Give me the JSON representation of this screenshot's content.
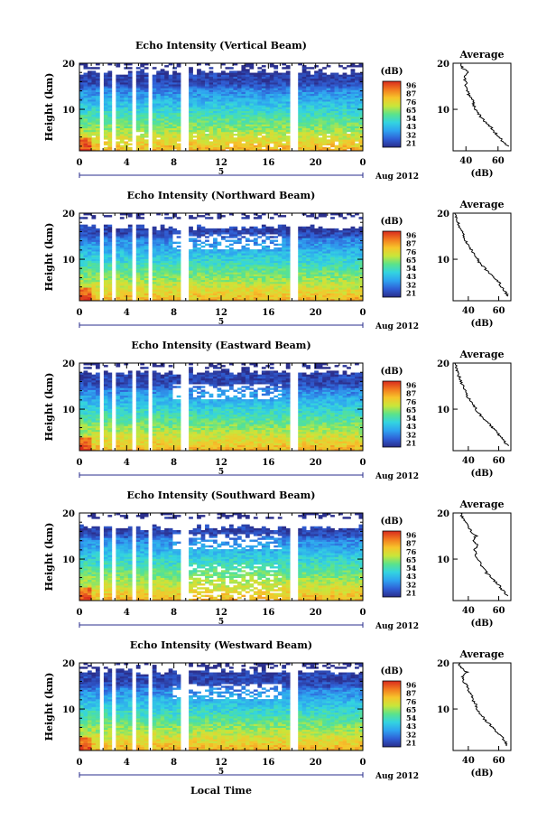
{
  "panels": [
    {
      "title": "Echo Intensity (Vertical Beam)",
      "ylabel": "Height (km)",
      "yticks": [
        "20",
        "10"
      ],
      "xticks": [
        "0",
        "4",
        "8",
        "12",
        "16",
        "20",
        "0"
      ],
      "date_marker": "5",
      "date_label": "Aug 2012"
    },
    {
      "title": "Echo Intensity (Northward Beam)",
      "ylabel": "Height (km)",
      "yticks": [
        "20",
        "10"
      ],
      "xticks": [
        "0",
        "4",
        "8",
        "12",
        "16",
        "20",
        "0"
      ],
      "date_marker": "5",
      "date_label": "Aug 2012"
    },
    {
      "title": "Echo Intensity (Eastward Beam)",
      "ylabel": "Height (km)",
      "yticks": [
        "20",
        "10"
      ],
      "xticks": [
        "0",
        "4",
        "8",
        "12",
        "16",
        "20",
        "0"
      ],
      "date_marker": "5",
      "date_label": "Aug 2012"
    },
    {
      "title": "Echo Intensity (Southward Beam)",
      "ylabel": "Height (km)",
      "yticks": [
        "20",
        "10"
      ],
      "xticks": [
        "0",
        "4",
        "8",
        "12",
        "16",
        "20",
        "0"
      ],
      "date_marker": "5",
      "date_label": "Aug 2012"
    },
    {
      "title": "Echo Intensity (Westward Beam)",
      "ylabel": "Height (km)",
      "yticks": [
        "20",
        "10"
      ],
      "xticks": [
        "0",
        "4",
        "8",
        "12",
        "16",
        "20",
        "0"
      ],
      "date_marker": "5",
      "date_label": "Aug 2012"
    }
  ],
  "xlabel_bottom": "Local Time",
  "colorbar": {
    "unit": "(dB)",
    "ticks": [
      "96",
      "87",
      "76",
      "65",
      "54",
      "43",
      "32",
      "21"
    ]
  },
  "profile": {
    "title": "Average",
    "xlabel": "(dB)"
  },
  "colors": {
    "scale": [
      "#2a2e8c",
      "#2f5fd6",
      "#2ea3f0",
      "#33d4e0",
      "#5be38a",
      "#c9e63a",
      "#f6c52a",
      "#f27a1f",
      "#d92b1e"
    ]
  },
  "chart_data": [
    {
      "type": "heatmap",
      "title": "Echo Intensity (Vertical Beam)",
      "xlabel": "Local Time",
      "ylabel": "Height (km)",
      "xlim": [
        0,
        24
      ],
      "ylim": [
        1,
        20
      ],
      "color_scale_db": [
        21,
        96
      ],
      "date": "5 Aug 2012",
      "average_profile": {
        "type": "line",
        "title": "Average",
        "xlabel": "(dB)",
        "xticks": [
          "40",
          "60"
        ],
        "yticks": [
          "20",
          "10"
        ],
        "xlim": [
          32,
          68
        ],
        "ylim": [
          1,
          20
        ],
        "height_km": [
          2,
          3,
          4,
          5,
          6,
          7,
          8,
          9,
          10,
          11,
          12,
          13,
          14,
          15,
          16,
          17,
          18,
          19,
          20
        ],
        "db": [
          66,
          63,
          61,
          58,
          56,
          53,
          50,
          48,
          46,
          45,
          44,
          42,
          41,
          40,
          40,
          39,
          42,
          38,
          37
        ]
      }
    },
    {
      "type": "heatmap",
      "title": "Echo Intensity (Northward Beam)",
      "xlabel": "Local Time",
      "ylabel": "Height (km)",
      "xlim": [
        0,
        24
      ],
      "ylim": [
        1,
        20
      ],
      "color_scale_db": [
        21,
        96
      ],
      "date": "5 Aug 2012",
      "average_profile": {
        "type": "line",
        "title": "Average",
        "xlabel": "(dB)",
        "xticks": [
          "40",
          "60"
        ],
        "yticks": [
          "20",
          "10"
        ],
        "xlim": [
          30,
          68
        ],
        "ylim": [
          1,
          20
        ],
        "height_km": [
          2,
          3,
          4,
          5,
          6,
          7,
          8,
          9,
          10,
          11,
          12,
          13,
          14,
          15,
          16,
          17,
          18,
          19,
          20
        ],
        "db": [
          66,
          64,
          62,
          60,
          57,
          54,
          51,
          48,
          46,
          44,
          42,
          40,
          38,
          37,
          36,
          34,
          33,
          32,
          31
        ]
      }
    },
    {
      "type": "heatmap",
      "title": "Echo Intensity (Eastward Beam)",
      "xlabel": "Local Time",
      "ylabel": "Height (km)",
      "xlim": [
        0,
        24
      ],
      "ylim": [
        1,
        20
      ],
      "color_scale_db": [
        21,
        96
      ],
      "date": "5 Aug 2012",
      "average_profile": {
        "type": "line",
        "title": "Average",
        "xlabel": "(dB)",
        "xticks": [
          "40",
          "60"
        ],
        "yticks": [
          "20",
          "10"
        ],
        "xlim": [
          30,
          68
        ],
        "ylim": [
          1,
          20
        ],
        "height_km": [
          2,
          3,
          4,
          5,
          6,
          7,
          8,
          9,
          10,
          11,
          12,
          13,
          14,
          15,
          16,
          17,
          18,
          19,
          20
        ],
        "db": [
          66,
          64,
          61,
          59,
          56,
          53,
          50,
          47,
          45,
          43,
          41,
          39,
          38,
          37,
          35,
          34,
          33,
          32,
          31
        ]
      }
    },
    {
      "type": "heatmap",
      "title": "Echo Intensity (Southward Beam)",
      "xlabel": "Local Time",
      "ylabel": "Height (km)",
      "xlim": [
        0,
        24
      ],
      "ylim": [
        1,
        20
      ],
      "color_scale_db": [
        21,
        96
      ],
      "date": "5 Aug 2012",
      "average_profile": {
        "type": "line",
        "title": "Average",
        "xlabel": "(dB)",
        "xticks": [
          "40",
          "60"
        ],
        "yticks": [
          "20",
          "10"
        ],
        "xlim": [
          30,
          68
        ],
        "ylim": [
          1,
          20
        ],
        "height_km": [
          2,
          3,
          4,
          5,
          6,
          7,
          8,
          9,
          10,
          11,
          12,
          13,
          14,
          15,
          16,
          17,
          18,
          19,
          20
        ],
        "db": [
          66,
          63,
          61,
          58,
          55,
          52,
          50,
          48,
          46,
          45,
          44,
          46,
          43,
          45,
          42,
          40,
          38,
          36,
          35
        ]
      }
    },
    {
      "type": "heatmap",
      "title": "Echo Intensity (Westward Beam)",
      "xlabel": "Local Time",
      "ylabel": "Height (km)",
      "xlim": [
        0,
        24
      ],
      "ylim": [
        1,
        20
      ],
      "color_scale_db": [
        21,
        96
      ],
      "date": "5 Aug 2012",
      "average_profile": {
        "type": "line",
        "title": "Average",
        "xlabel": "(dB)",
        "xticks": [
          "40",
          "60"
        ],
        "yticks": [
          "20",
          "10"
        ],
        "xlim": [
          30,
          68
        ],
        "ylim": [
          1,
          20
        ],
        "height_km": [
          2,
          3,
          4,
          5,
          6,
          7,
          8,
          9,
          10,
          11,
          12,
          13,
          14,
          15,
          16,
          17,
          18,
          19,
          20
        ],
        "db": [
          66,
          64,
          62,
          59,
          56,
          53,
          50,
          48,
          46,
          45,
          43,
          42,
          40,
          39,
          37,
          36,
          39,
          35,
          34
        ]
      }
    }
  ]
}
